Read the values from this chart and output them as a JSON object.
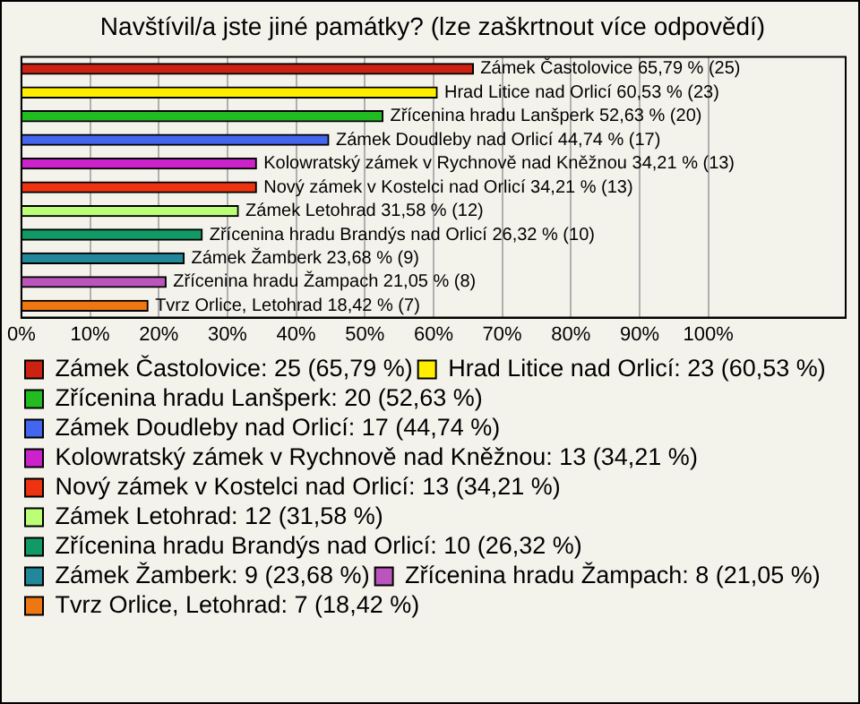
{
  "chart_data": {
    "type": "bar",
    "orientation": "horizontal",
    "stacked": true,
    "title": "Navštívil/a jste jiné památky? (lze zaškrtnout více odpovědí)",
    "categories": [
      null,
      null,
      null,
      null,
      null,
      null,
      null,
      null,
      null,
      null,
      null
    ],
    "series": [
      {
        "name": "Zámek Častolovice: 25 (65,79 %)",
        "color": "#cc2211",
        "values": [
          65.79,
          null,
          null,
          null,
          null,
          null,
          null,
          null,
          null,
          null,
          null
        ],
        "value_labels": [
          "Zámek Častolovice 65,79 % (25)",
          null,
          null,
          null,
          null,
          null,
          null,
          null,
          null,
          null,
          null
        ]
      },
      {
        "name": "Hrad Litice nad Orlicí: 23 (60,53 %)",
        "color": "#ffee00",
        "values": [
          null,
          60.53,
          null,
          null,
          null,
          null,
          null,
          null,
          null,
          null,
          null
        ],
        "value_labels": [
          null,
          "Hrad Litice nad Orlicí 60,53 % (23)",
          null,
          null,
          null,
          null,
          null,
          null,
          null,
          null,
          null
        ]
      },
      {
        "name": "Zřícenina hradu Lanšperk: 20 (52,63 %)",
        "color": "#22bb22",
        "values": [
          null,
          null,
          52.63,
          null,
          null,
          null,
          null,
          null,
          null,
          null,
          null
        ],
        "value_labels": [
          null,
          null,
          "Zřícenina hradu Lanšperk 52,63 % (20)",
          null,
          null,
          null,
          null,
          null,
          null,
          null,
          null
        ]
      },
      {
        "name": "Zámek Doudleby nad Orlicí: 17 (44,74 %)",
        "color": "#4466ee",
        "values": [
          null,
          null,
          null,
          44.74,
          null,
          null,
          null,
          null,
          null,
          null,
          null
        ],
        "value_labels": [
          null,
          null,
          null,
          "Zámek Doudleby nad Orlicí 44,74 % (17)",
          null,
          null,
          null,
          null,
          null,
          null,
          null
        ]
      },
      {
        "name": "Kolowratský zámek v Rychnově nad Kněžnou: 13 (34,21 %)",
        "color": "#cc22cc",
        "values": [
          null,
          null,
          null,
          null,
          34.21,
          null,
          null,
          null,
          null,
          null,
          null
        ],
        "value_labels": [
          null,
          null,
          null,
          null,
          "Kolowratský zámek v Rychnově nad Kněžnou 34,21 % (13)",
          null,
          null,
          null,
          null,
          null,
          null
        ]
      },
      {
        "name": "Nový zámek v Kostelci nad Orlicí: 13 (34,21 %)",
        "color": "#ee3311",
        "values": [
          null,
          null,
          null,
          null,
          null,
          34.21,
          null,
          null,
          null,
          null,
          null
        ],
        "value_labels": [
          null,
          null,
          null,
          null,
          null,
          "Nový zámek v Kostelci nad Orlicí 34,21 % (13)",
          null,
          null,
          null,
          null,
          null
        ]
      },
      {
        "name": "Zámek Letohrad: 12 (31,58 %)",
        "color": "#bbff77",
        "values": [
          null,
          null,
          null,
          null,
          null,
          null,
          31.58,
          null,
          null,
          null,
          null
        ],
        "value_labels": [
          null,
          null,
          null,
          null,
          null,
          null,
          "Zámek Letohrad 31,58 % (12)",
          null,
          null,
          null,
          null
        ]
      },
      {
        "name": "Zřícenina hradu Brandýs nad Orlicí: 10 (26,32 %)",
        "color": "#119966",
        "values": [
          null,
          null,
          null,
          null,
          null,
          null,
          null,
          26.32,
          null,
          null,
          null
        ],
        "value_labels": [
          null,
          null,
          null,
          null,
          null,
          null,
          null,
          "Zřícenina hradu Brandýs nad Orlicí 26,32 % (10)",
          null,
          null,
          null
        ]
      },
      {
        "name": "Zámek Žamberk: 9 (23,68 %)",
        "color": "#228899",
        "values": [
          null,
          null,
          null,
          null,
          null,
          null,
          null,
          null,
          23.68,
          null,
          null
        ],
        "value_labels": [
          null,
          null,
          null,
          null,
          null,
          null,
          null,
          null,
          "Zámek Žamberk 23,68 % (9)",
          null,
          null
        ]
      },
      {
        "name": "Zřícenina hradu Žampach: 8 (21,05 %)",
        "color": "#bb55bb",
        "values": [
          null,
          null,
          null,
          null,
          null,
          null,
          null,
          null,
          null,
          21.05,
          null
        ],
        "value_labels": [
          null,
          null,
          null,
          null,
          null,
          null,
          null,
          null,
          null,
          "Zřícenina hradu Žampach 21,05 % (8)",
          null
        ]
      },
      {
        "name": "Tvrz Orlice, Letohrad: 7 (18,42 %)",
        "color": "#ee7711",
        "values": [
          null,
          null,
          null,
          null,
          null,
          null,
          null,
          null,
          null,
          null,
          18.42
        ],
        "value_labels": [
          null,
          null,
          null,
          null,
          null,
          null,
          null,
          null,
          null,
          null,
          "Tvrz Orlice, Letohrad 18,42 % (7)"
        ]
      }
    ],
    "xlim": [
      0,
      120
    ],
    "xticks": [
      {
        "value": 0,
        "label": "0%"
      },
      {
        "value": 10,
        "label": "10%"
      },
      {
        "value": 20,
        "label": "20%"
      },
      {
        "value": 30,
        "label": "30%"
      },
      {
        "value": 40,
        "label": "40%"
      },
      {
        "value": 50,
        "label": "50%"
      },
      {
        "value": 60,
        "label": "60%"
      },
      {
        "value": 70,
        "label": "70%"
      },
      {
        "value": 80,
        "label": "80%"
      },
      {
        "value": 90,
        "label": "90%"
      },
      {
        "value": 100,
        "label": "100%"
      }
    ],
    "grid": "x",
    "legend": "bottom",
    "tick_labels": "x"
  }
}
